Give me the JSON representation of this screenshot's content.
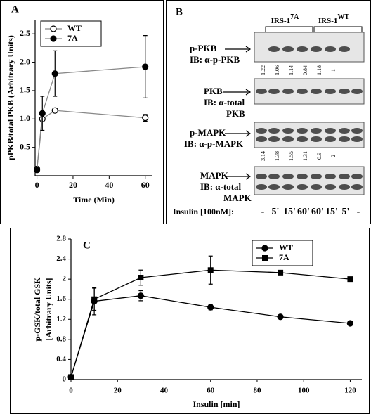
{
  "chart_data": [
    {
      "type": "line",
      "panel": "A",
      "xlabel": "Time (Min)",
      "ylabel": "pPKB/total PKB (Arbitrary Units)",
      "x": [
        0,
        3,
        10,
        60
      ],
      "series": [
        {
          "name": "WT",
          "color": "#000000",
          "marker": "circle-open",
          "values": [
            0.12,
            1.0,
            1.15,
            1.02
          ],
          "errors": [
            null,
            null,
            null,
            0.06
          ]
        },
        {
          "name": "7A",
          "color": "#000000",
          "marker": "circle",
          "values": [
            0.1,
            1.1,
            1.8,
            1.92
          ],
          "errors": [
            null,
            0.3,
            0.4,
            0.55
          ]
        }
      ],
      "line_color": "#888888",
      "legend": "upper left",
      "xlim": [
        -1,
        64
      ],
      "ylim": [
        0,
        2.75
      ],
      "xticks": [
        0,
        20,
        40,
        60
      ],
      "yticks": [
        0.5,
        {
          "value": 1,
          "label": "1.0"
        },
        1.5,
        {
          "value": 2,
          "label": "2.0"
        },
        2.5
      ]
    },
    {
      "type": "line",
      "panel": "C",
      "xlabel": "Insulin [min]",
      "ylabel": [
        "p-GSK/total GSK",
        "[Arbitrary Units]"
      ],
      "x": [
        0,
        10,
        30,
        60,
        90,
        120
      ],
      "series": [
        {
          "name": "WT",
          "color": "#000000",
          "marker": "circle",
          "values": [
            0.05,
            1.56,
            1.67,
            1.44,
            1.25,
            1.12
          ],
          "errors": [
            null,
            0.27,
            0.1,
            0.05,
            null,
            null
          ]
        },
        {
          "name": "7A",
          "color": "#000000",
          "marker": "square",
          "values": [
            0.05,
            1.6,
            2.03,
            2.18,
            2.13,
            2.0
          ],
          "errors": [
            null,
            0.22,
            0.15,
            0.28,
            null,
            null
          ]
        }
      ],
      "line_color": "#000000",
      "legend": "upper right",
      "xlim": [
        0,
        125
      ],
      "ylim": [
        0,
        2.8
      ],
      "xticks": [
        0,
        20,
        40,
        60,
        80,
        100,
        120
      ],
      "yticks": [
        0,
        0.4,
        0.8,
        1.2,
        1.6,
        2,
        2.4,
        2.8
      ]
    }
  ],
  "blot": {
    "panel": "B",
    "groups": [
      {
        "label": "IRS-1",
        "superscript": "7A"
      },
      {
        "label": "IRS-1",
        "superscript": "WT"
      }
    ],
    "rows": [
      {
        "name": "p-PKB",
        "antibody": [
          "IB: α-p-PKB"
        ],
        "quantification": [
          1.22,
          1.06,
          1.14,
          0.84,
          1.18,
          1
        ]
      },
      {
        "name": "PKB",
        "antibody": [
          "IB: α-total",
          "PKB"
        ],
        "quantification": []
      },
      {
        "name": "p-MAPK",
        "antibody": [
          "IB: α-p-MAPK"
        ],
        "quantification": [
          3.14,
          1.38,
          1.55,
          1.31,
          0.9,
          2
        ]
      },
      {
        "name": "MAPK",
        "antibody": [
          "IB: α-total",
          "MAPK"
        ],
        "quantification": []
      }
    ],
    "treatment_label": "Insulin [100nM]:",
    "lanes": [
      "-",
      "5'",
      "15'",
      "60'",
      "60'",
      "15'",
      "5'",
      "-"
    ]
  }
}
